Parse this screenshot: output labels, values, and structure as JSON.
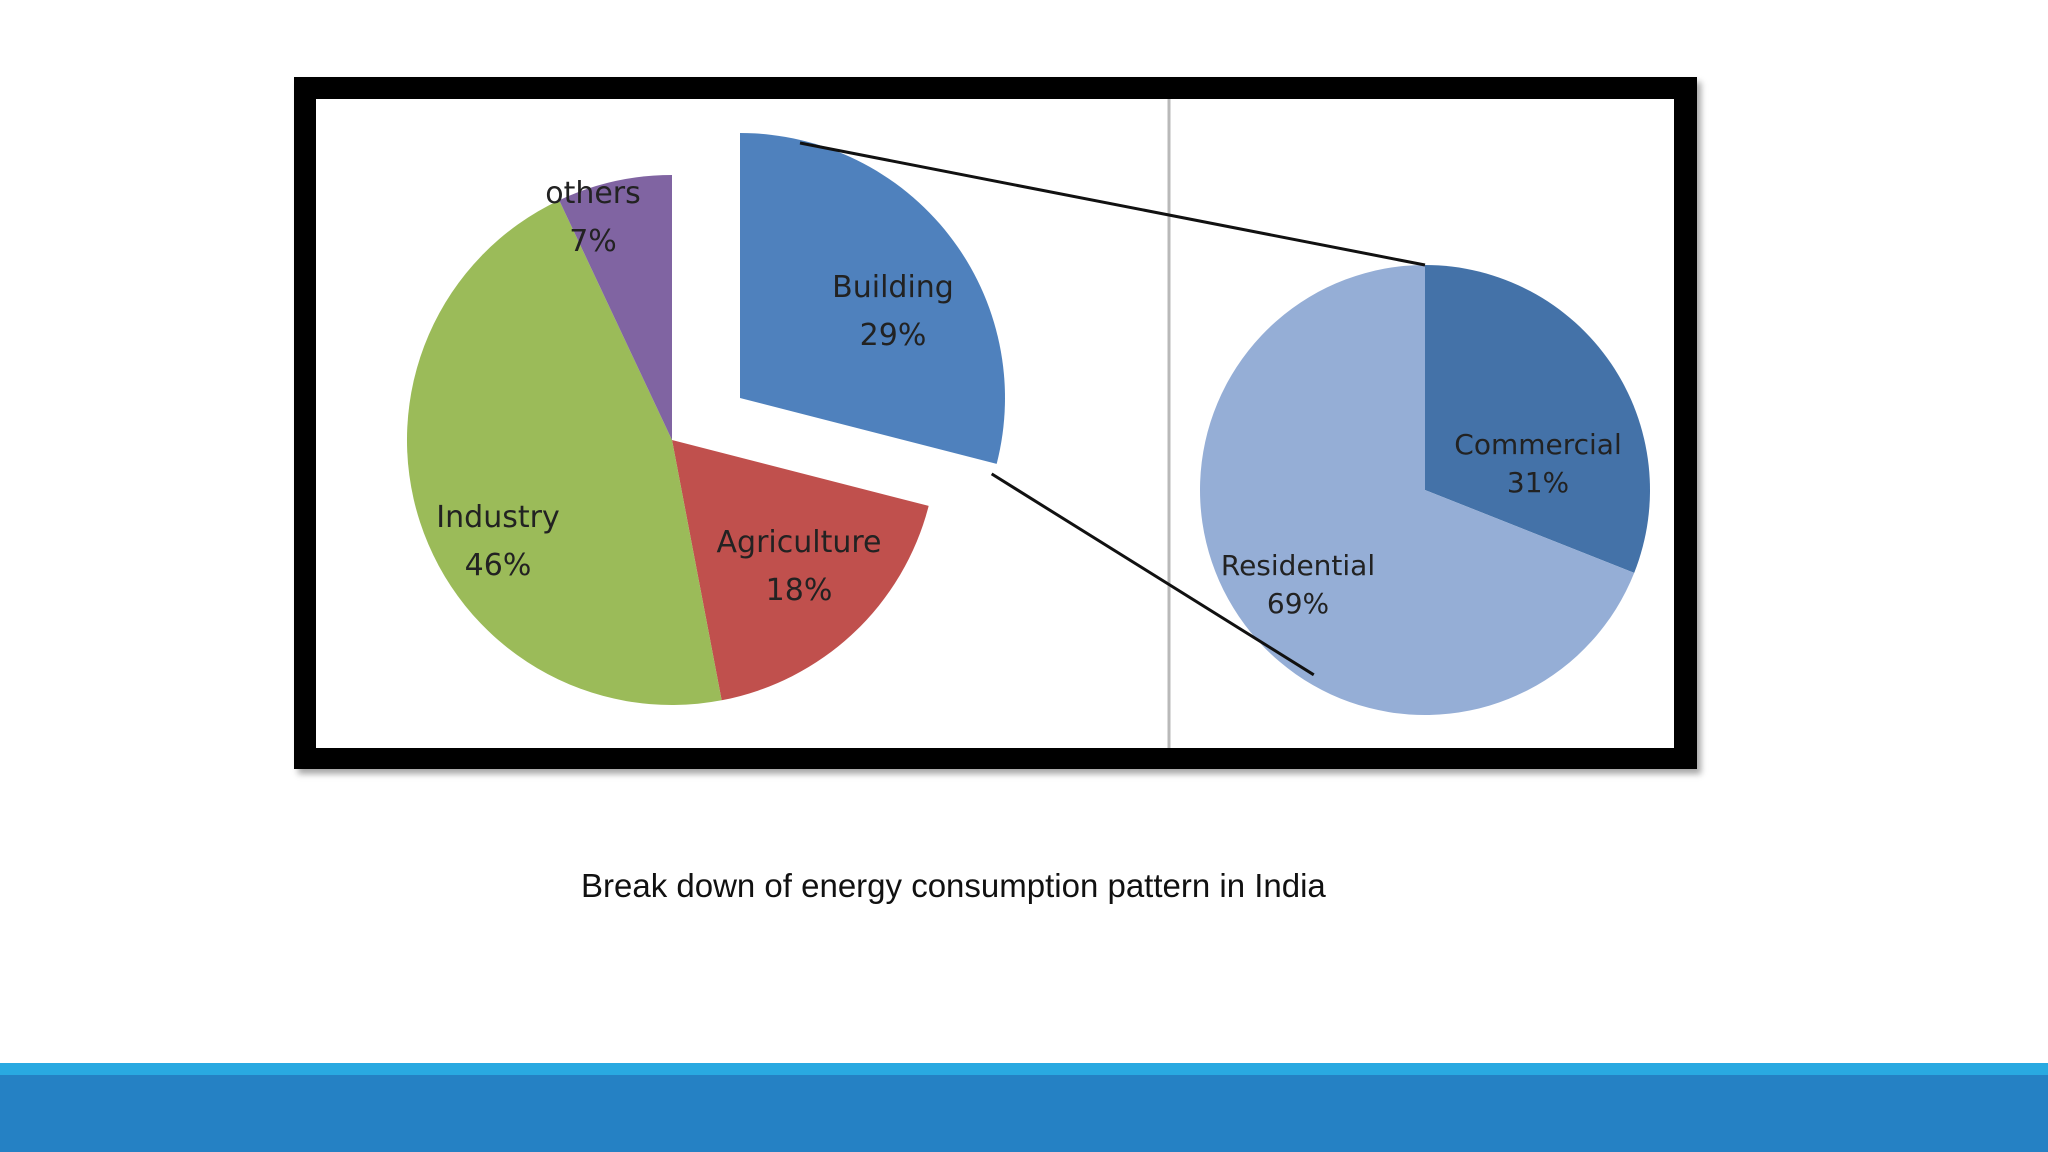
{
  "caption": "Break down of energy consumption pattern in India",
  "chart_data": [
    {
      "type": "pie",
      "labels": [
        "Building",
        "Agriculture",
        "Industry",
        "others"
      ],
      "values": [
        29,
        18,
        46,
        7
      ],
      "value_labels": [
        "29%",
        "18%",
        "46%",
        "7%"
      ],
      "colors": [
        "#4f81bd",
        "#c0504d",
        "#9bbb59",
        "#8064a2"
      ],
      "exploded": "Building"
    },
    {
      "type": "pie",
      "labels": [
        "Commercial",
        "Residential"
      ],
      "values": [
        31,
        69
      ],
      "value_labels": [
        "31%",
        "69%"
      ],
      "colors": [
        "#4472a8",
        "#95aed6"
      ],
      "breakdown_of": "Building"
    }
  ],
  "colors": {
    "frame": "#000000",
    "footer_light": "#29a9e1",
    "footer_dark": "#2581c4"
  }
}
